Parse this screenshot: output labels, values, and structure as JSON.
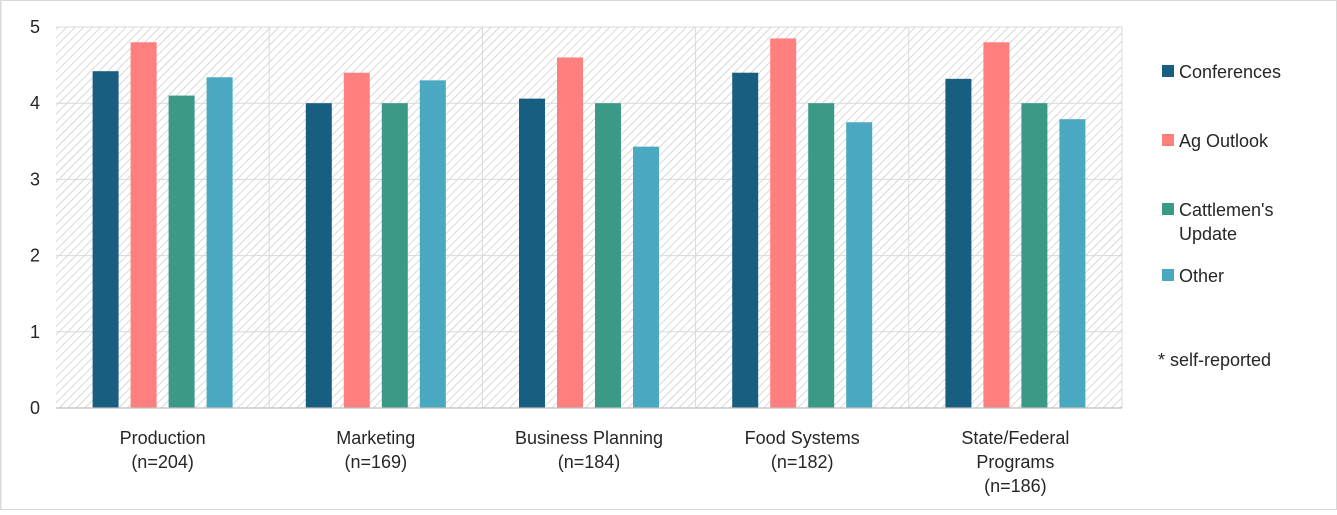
{
  "chart_data": {
    "type": "bar",
    "title": "",
    "xlabel": "",
    "ylabel": "",
    "ylim": [
      0,
      5
    ],
    "yticks": [
      0,
      1,
      2,
      3,
      4,
      5
    ],
    "grid": true,
    "legend_position": "right",
    "categories": [
      [
        "Production",
        "(n=204)"
      ],
      [
        "Marketing",
        "(n=169)"
      ],
      [
        "Business Planning",
        "(n=184)"
      ],
      [
        "Food Systems",
        "(n=182)"
      ],
      [
        "State/Federal",
        "Programs",
        "(n=186)"
      ]
    ],
    "series": [
      {
        "name": "Conferences",
        "legend_lines": [
          "Conferences"
        ],
        "color": "#175e80",
        "values": [
          4.42,
          4.0,
          4.06,
          4.4,
          4.32
        ]
      },
      {
        "name": "Ag Outlook",
        "legend_lines": [
          "Ag Outlook"
        ],
        "color": "#ff7f7f",
        "values": [
          4.8,
          4.4,
          4.6,
          4.85,
          4.8
        ]
      },
      {
        "name": "Cattlemen's Update",
        "legend_lines": [
          "Cattlemen's",
          "Update"
        ],
        "color": "#3a9a86",
        "values": [
          4.1,
          4.0,
          4.0,
          4.0,
          4.0
        ]
      },
      {
        "name": "Other",
        "legend_lines": [
          "Other"
        ],
        "color": "#4aa8c0",
        "values": [
          4.34,
          4.3,
          3.43,
          3.75,
          3.79
        ]
      }
    ],
    "annotation": "* self-reported"
  }
}
